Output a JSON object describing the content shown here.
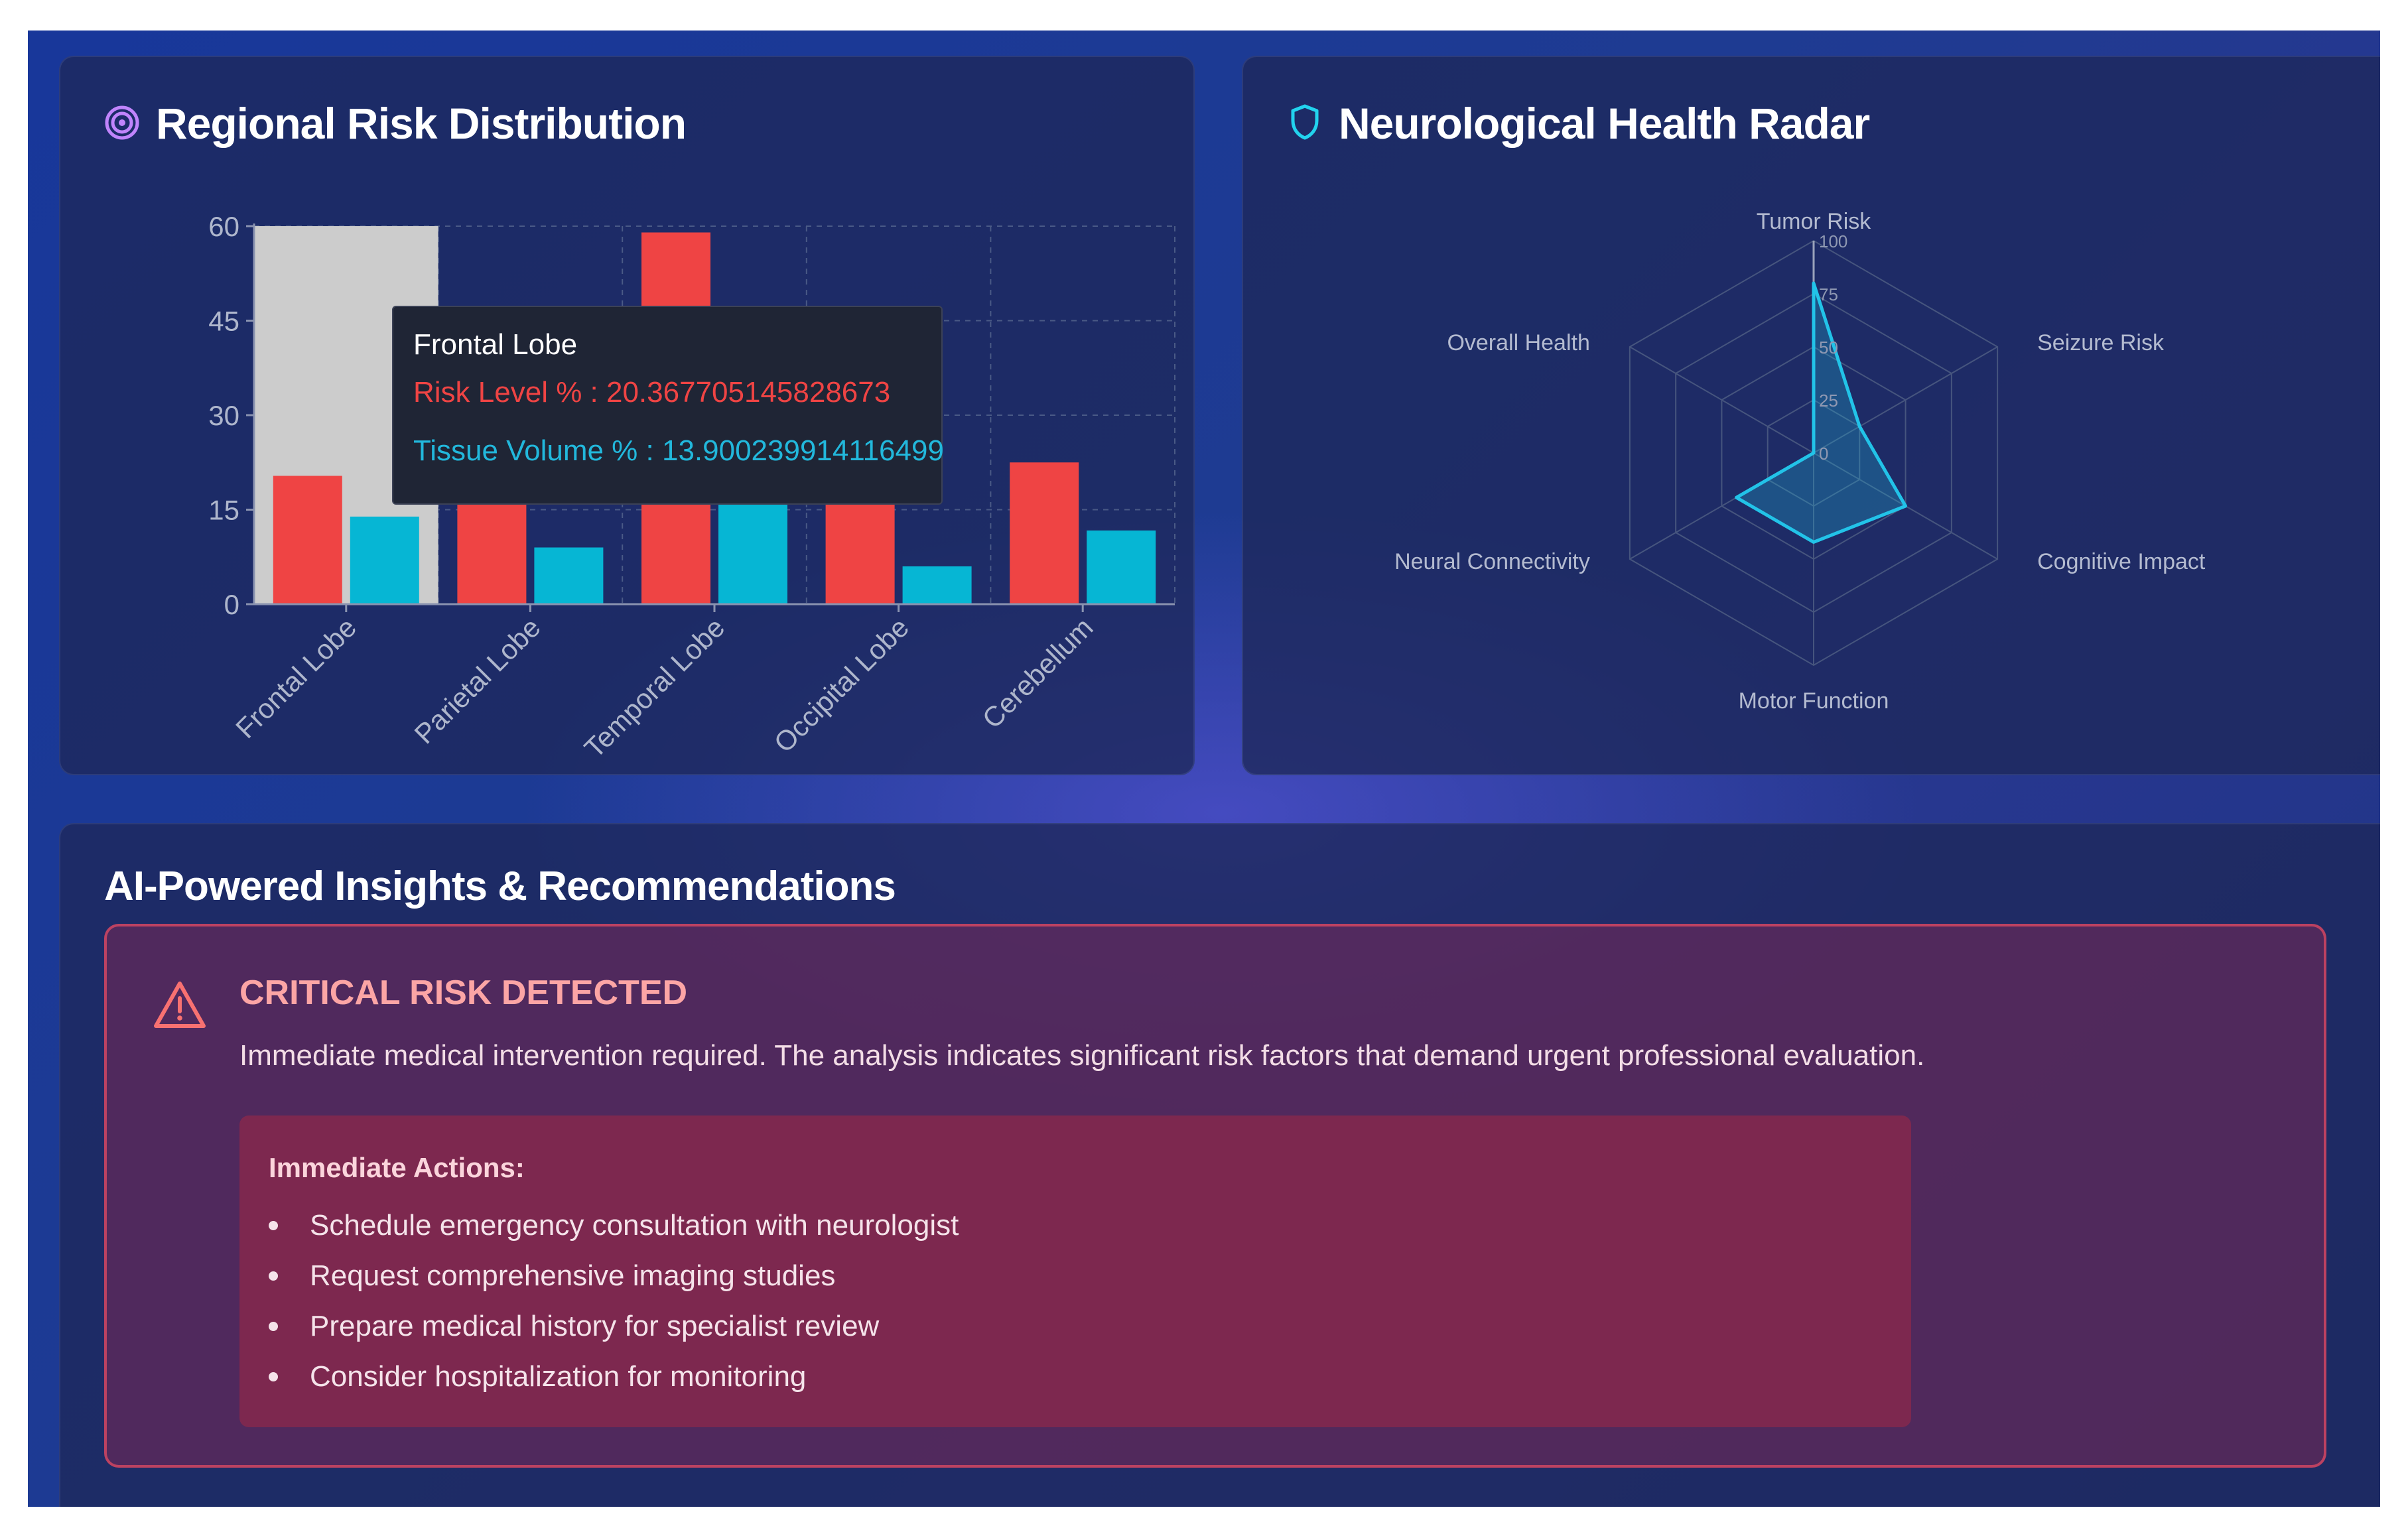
{
  "bar_card": {
    "title": "Regional Risk Distribution",
    "icon": "target-icon"
  },
  "radar_card": {
    "title": "Neurological Health Radar",
    "icon": "shield-icon"
  },
  "colors": {
    "risk": "#ef4444",
    "tissue": "#06b6d4",
    "highlight": "#cccccc",
    "alert": "#f87171"
  },
  "tooltip": {
    "category": "Frontal Lobe",
    "risk_line": "Risk Level % : 20.367705145828673",
    "volume_line": "Tissue Volume % : 13.900239914116499"
  },
  "chart_data": [
    {
      "type": "bar",
      "categories": [
        "Frontal Lobe",
        "Parietal Lobe",
        "Temporal Lobe",
        "Occipital Lobe",
        "Cerebellum"
      ],
      "series": [
        {
          "name": "Risk Level %",
          "values": [
            20.367705145828673,
            18,
            59,
            17,
            22.5
          ]
        },
        {
          "name": "Tissue Volume %",
          "values": [
            13.900239914116499,
            9,
            17,
            6,
            11.7
          ]
        }
      ],
      "y_ticks": [
        "0",
        "15",
        "30",
        "45",
        "60"
      ],
      "ylim": [
        0,
        60
      ],
      "grid": true,
      "highlighted_category": "Frontal Lobe"
    },
    {
      "type": "radar",
      "axes": [
        "Tumor Risk",
        "Seizure Risk",
        "Cognitive Impact",
        "Motor Function",
        "Neural Connectivity",
        "Overall Health"
      ],
      "radial_ticks": [
        "0",
        "25",
        "50",
        "75",
        "100"
      ],
      "values": [
        80,
        25,
        50,
        42,
        42,
        0
      ]
    }
  ],
  "insights": {
    "title": "AI-Powered Insights & Recommendations",
    "alert": {
      "icon": "warning-triangle-icon",
      "title": "CRITICAL RISK DETECTED",
      "description": "Immediate medical intervention required. The analysis indicates significant risk factors that demand urgent professional evaluation.",
      "actions_title": "Immediate Actions:",
      "actions": [
        "Schedule emergency consultation with neurologist",
        "Request comprehensive imaging studies",
        "Prepare medical history for specialist review",
        "Consider hospitalization for monitoring"
      ]
    }
  }
}
